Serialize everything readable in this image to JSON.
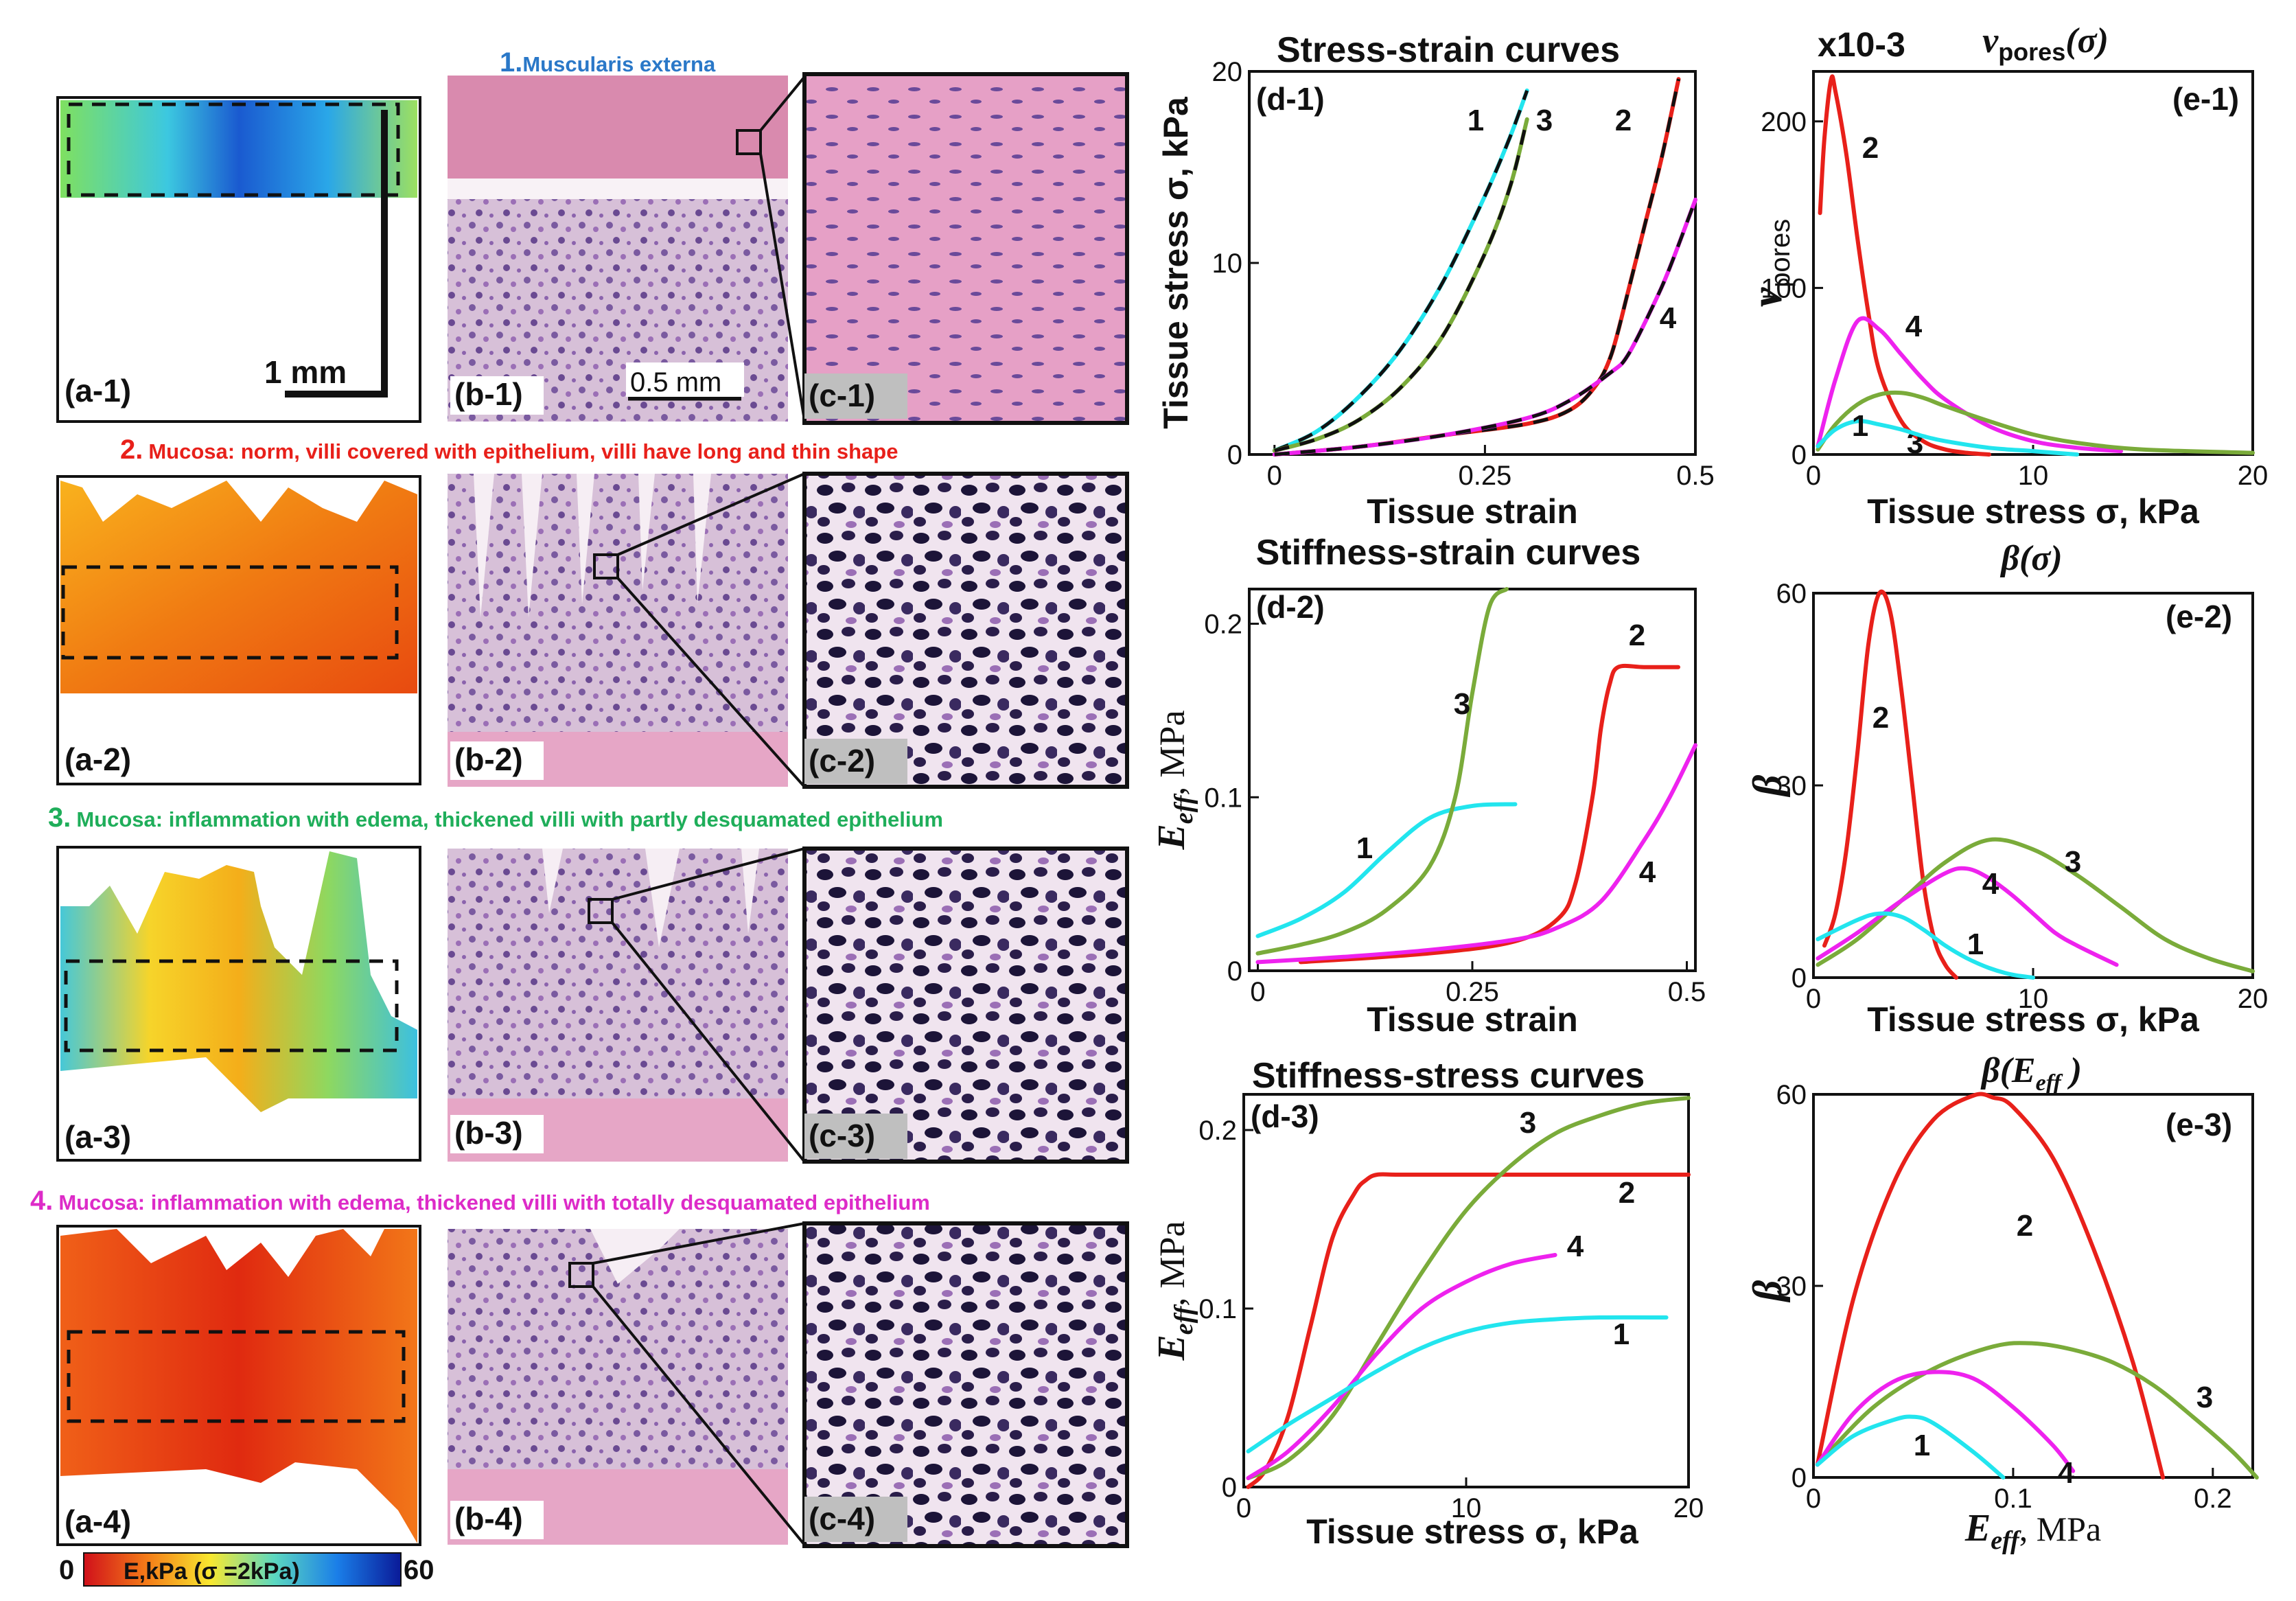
{
  "figure": {
    "panel_labels": {
      "a1": "(a-1)",
      "b1": "(b-1)",
      "c1": "(c-1)",
      "a2": "(a-2)",
      "b2": "(b-2)",
      "c2": "(c-2)",
      "a3": "(a-3)",
      "b3": "(b-3)",
      "c3": "(c-3)",
      "a4": "(a-4)",
      "b4": "(b-4)",
      "c4": "(c-4)"
    },
    "captions": {
      "r1_num": "1.",
      "r1_text": "Muscularis externa",
      "r2_num": "2.",
      "r2_text": "Mucosa: norm, villi covered with epithelium, villi have long and thin shape",
      "r3_num": "3.",
      "r3_text": "Mucosa: inflammation with edema, thickened villi with partly desquamated epithelium",
      "r4_num": "4.",
      "r4_text": "Mucosa: inflammation with edema, thickened villi with totally desquamated epithelium"
    },
    "scalebar_a": "1 mm",
    "scalebar_b": "0.5 mm",
    "colorbar": {
      "min": "0",
      "label": "E,kPa (σ =2kPa)",
      "max": "60"
    },
    "colors": {
      "1": "#22e5ee",
      "2": "#e8201a",
      "3": "#7aab3a",
      "4": "#ee22ee",
      "cap1": "#2a78c8",
      "cap2": "#e8201a",
      "cap3": "#1fae5a",
      "cap4": "#dd2bc8"
    }
  },
  "chart_data": [
    {
      "id": "d-1",
      "type": "line",
      "label": "(d-1)",
      "title": "Stress-strain curves",
      "xlabel": "Tissue strain",
      "ylabel": "Tissue stress σ, kPa",
      "xlim": [
        -0.03,
        0.5
      ],
      "ylim": [
        0,
        20
      ],
      "xticks": [
        {
          "v": 0,
          "t": "0"
        },
        {
          "v": 0.25,
          "t": "0.25"
        },
        {
          "v": 0.5,
          "t": "0.5"
        }
      ],
      "yticks": [
        {
          "v": 0,
          "t": "0"
        },
        {
          "v": 10,
          "t": "10"
        },
        {
          "v": 20,
          "t": "20"
        }
      ],
      "series": [
        {
          "name": "1",
          "x": [
            0,
            0.05,
            0.1,
            0.15,
            0.2,
            0.25,
            0.28,
            0.3
          ],
          "y": [
            0.2,
            1.2,
            3,
            5.5,
            9,
            13.5,
            16.6,
            19
          ]
        },
        {
          "name": "3",
          "x": [
            0,
            0.05,
            0.1,
            0.15,
            0.2,
            0.25,
            0.28,
            0.3
          ],
          "y": [
            0.2,
            0.8,
            1.8,
            3.5,
            6.2,
            10.5,
            14,
            17.5
          ]
        },
        {
          "name": "2",
          "x": [
            0,
            0.1,
            0.2,
            0.3,
            0.35,
            0.38,
            0.4,
            0.42,
            0.44,
            0.46,
            0.48
          ],
          "y": [
            0,
            0.4,
            1,
            1.6,
            2.3,
            3.5,
            5.2,
            8.5,
            12,
            15.5,
            19.6
          ]
        },
        {
          "name": "4",
          "x": [
            0,
            0.1,
            0.2,
            0.3,
            0.35,
            0.4,
            0.42,
            0.45,
            0.47,
            0.5
          ],
          "y": [
            0,
            0.4,
            1,
            1.9,
            2.8,
            4.3,
            5.2,
            7.8,
            9.8,
            13.3
          ]
        }
      ],
      "fit_style": "black dashed overlay"
    },
    {
      "id": "d-2",
      "type": "line",
      "label": "(d-2)",
      "title": "Stiffness-strain curves",
      "xlabel": "Tissue strain",
      "ylabel": "E",
      "ylabel_sub": "eff",
      "ylabel_unit": ", MPa",
      "xlim": [
        -0.01,
        0.51
      ],
      "ylim": [
        0,
        0.22
      ],
      "xticks": [
        {
          "v": 0,
          "t": "0"
        },
        {
          "v": 0.25,
          "t": "0.25"
        },
        {
          "v": 0.5,
          "t": "0.5"
        }
      ],
      "yticks": [
        {
          "v": 0,
          "t": "0"
        },
        {
          "v": 0.1,
          "t": "0.1"
        },
        {
          "v": 0.2,
          "t": "0.2"
        }
      ],
      "series": [
        {
          "name": "1",
          "x": [
            0,
            0.05,
            0.1,
            0.15,
            0.2,
            0.25,
            0.3
          ],
          "y": [
            0.02,
            0.03,
            0.045,
            0.068,
            0.088,
            0.095,
            0.096
          ]
        },
        {
          "name": "3",
          "x": [
            0,
            0.05,
            0.1,
            0.15,
            0.2,
            0.23,
            0.25,
            0.27,
            0.29
          ],
          "y": [
            0.01,
            0.015,
            0.022,
            0.035,
            0.06,
            0.1,
            0.16,
            0.21,
            0.22
          ]
        },
        {
          "name": "2",
          "x": [
            0.05,
            0.2,
            0.3,
            0.35,
            0.37,
            0.39,
            0.4,
            0.41,
            0.42,
            0.45,
            0.49
          ],
          "y": [
            0.005,
            0.01,
            0.017,
            0.03,
            0.05,
            0.1,
            0.14,
            0.165,
            0.175,
            0.175,
            0.175
          ]
        },
        {
          "name": "4",
          "x": [
            0,
            0.1,
            0.2,
            0.3,
            0.35,
            0.4,
            0.45,
            0.48,
            0.51
          ],
          "y": [
            0.005,
            0.008,
            0.012,
            0.018,
            0.025,
            0.04,
            0.075,
            0.1,
            0.13
          ]
        }
      ]
    },
    {
      "id": "d-3",
      "type": "line",
      "label": "(d-3)",
      "title": "Stiffness-stress curves",
      "xlabel": "Tissue stress σ, kPa",
      "ylabel": "E",
      "ylabel_sub": "eff",
      "ylabel_unit": ", MPa",
      "xlim": [
        0,
        20
      ],
      "ylim": [
        0,
        0.22
      ],
      "xticks": [
        {
          "v": 0,
          "t": "0"
        },
        {
          "v": 10,
          "t": "10"
        },
        {
          "v": 20,
          "t": "20"
        }
      ],
      "yticks": [
        {
          "v": 0,
          "t": "0"
        },
        {
          "v": 0.1,
          "t": "0.1"
        },
        {
          "v": 0.2,
          "t": "0.2"
        }
      ],
      "series": [
        {
          "name": "2",
          "x": [
            0.2,
            1,
            2,
            3,
            4,
            5,
            5.5,
            6,
            7,
            10,
            15,
            20
          ],
          "y": [
            0,
            0.01,
            0.04,
            0.09,
            0.14,
            0.165,
            0.172,
            0.175,
            0.175,
            0.175,
            0.175,
            0.175
          ]
        },
        {
          "name": "3",
          "x": [
            0.2,
            2,
            4,
            6,
            8,
            10,
            12,
            14,
            16,
            18,
            20
          ],
          "y": [
            0.005,
            0.015,
            0.04,
            0.08,
            0.12,
            0.155,
            0.18,
            0.198,
            0.208,
            0.215,
            0.218
          ]
        },
        {
          "name": "4",
          "x": [
            0.2,
            2,
            4,
            6,
            8,
            10,
            12,
            14
          ],
          "y": [
            0.005,
            0.02,
            0.045,
            0.075,
            0.1,
            0.115,
            0.125,
            0.13
          ]
        },
        {
          "name": "1",
          "x": [
            0.2,
            2,
            4,
            6,
            8,
            10,
            12,
            14,
            16,
            19
          ],
          "y": [
            0.02,
            0.035,
            0.05,
            0.065,
            0.078,
            0.087,
            0.092,
            0.094,
            0.095,
            0.095
          ]
        }
      ]
    },
    {
      "id": "e-1",
      "type": "line",
      "label": "(e-1)",
      "title": "v",
      "title_sub": "pores",
      "title_arg": "(σ)",
      "multiplier": "x10-3",
      "xlabel": "Tissue stress σ, kPa",
      "ylabel": "v",
      "ylabel_sub": "pores",
      "xlim": [
        0,
        20
      ],
      "ylim": [
        0,
        230
      ],
      "xticks": [
        {
          "v": 0,
          "t": "0"
        },
        {
          "v": 10,
          "t": "10"
        },
        {
          "v": 20,
          "t": "20"
        }
      ],
      "yticks": [
        {
          "v": 0,
          "t": "0"
        },
        {
          "v": 100,
          "t": "100"
        },
        {
          "v": 200,
          "t": "200"
        }
      ],
      "series": [
        {
          "name": "2",
          "x": [
            0.3,
            0.5,
            0.8,
            1,
            1.5,
            2,
            2.5,
            3,
            4,
            5,
            6,
            7,
            8
          ],
          "y": [
            145,
            190,
            225,
            218,
            180,
            130,
            85,
            50,
            20,
            8,
            3,
            1,
            0
          ]
        },
        {
          "name": "4",
          "x": [
            0.2,
            1,
            2,
            3,
            4,
            5,
            6,
            8,
            10,
            12,
            14
          ],
          "y": [
            5,
            45,
            80,
            75,
            60,
            45,
            33,
            17,
            8,
            4,
            2
          ]
        },
        {
          "name": "3",
          "x": [
            0.2,
            1,
            2,
            3,
            4,
            5,
            6,
            8,
            10,
            12,
            15,
            20
          ],
          "y": [
            3,
            18,
            30,
            36,
            37,
            34,
            29,
            20,
            12,
            7,
            3,
            1
          ]
        },
        {
          "name": "1",
          "x": [
            0.2,
            1,
            2,
            3,
            4,
            5,
            6,
            8,
            10,
            12
          ],
          "y": [
            5,
            15,
            20,
            18,
            15,
            11,
            8,
            4,
            2,
            0
          ]
        }
      ]
    },
    {
      "id": "e-2",
      "type": "line",
      "label": "(e-2)",
      "title": "β(σ)",
      "xlabel": "Tissue stress σ, kPa",
      "ylabel": "β",
      "xlim": [
        0,
        20
      ],
      "ylim": [
        0,
        60
      ],
      "xticks": [
        {
          "v": 0,
          "t": "0"
        },
        {
          "v": 10,
          "t": "10"
        },
        {
          "v": 20,
          "t": "20"
        }
      ],
      "yticks": [
        {
          "v": 0,
          "t": "0"
        },
        {
          "v": 30,
          "t": "30"
        },
        {
          "v": 60,
          "t": "60"
        }
      ],
      "series": [
        {
          "name": "2",
          "x": [
            0.5,
            1,
            1.5,
            2,
            2.5,
            3,
            3.5,
            4,
            4.5,
            5,
            5.5,
            6,
            6.5
          ],
          "y": [
            5,
            10,
            20,
            35,
            52,
            60,
            57,
            45,
            30,
            15,
            6,
            2,
            0
          ]
        },
        {
          "name": "3",
          "x": [
            0.2,
            2,
            4,
            6,
            8,
            10,
            12,
            14,
            16,
            18,
            20
          ],
          "y": [
            2,
            6,
            12,
            18,
            21.5,
            20,
            16,
            11,
            6,
            3,
            1
          ]
        },
        {
          "name": "4",
          "x": [
            0.2,
            2,
            4,
            6,
            7,
            8,
            9,
            10,
            11,
            12,
            13.8
          ],
          "y": [
            3,
            7,
            12,
            16.3,
            17,
            15.5,
            13,
            10,
            7,
            5,
            2
          ]
        },
        {
          "name": "1",
          "x": [
            0.2,
            2,
            3,
            4,
            5,
            6,
            7,
            8,
            9,
            10
          ],
          "y": [
            6,
            9,
            10,
            9.5,
            7.5,
            5,
            3,
            1.5,
            0.5,
            0
          ]
        }
      ]
    },
    {
      "id": "e-3",
      "type": "line",
      "label": "(e-3)",
      "title": "β(E",
      "title_sub": "eff",
      "title_end": " )",
      "xlabel": "E",
      "xlabel_sub": "eff",
      "xlabel_unit": ", MPa",
      "ylabel": "β",
      "xlim": [
        0,
        0.22
      ],
      "ylim": [
        0,
        60
      ],
      "xticks": [
        {
          "v": 0,
          "t": "0"
        },
        {
          "v": 0.1,
          "t": "0.1"
        },
        {
          "v": 0.2,
          "t": "0.2"
        }
      ],
      "yticks": [
        {
          "v": 0,
          "t": "0"
        },
        {
          "v": 30,
          "t": "30"
        },
        {
          "v": 60,
          "t": "60"
        }
      ],
      "series": [
        {
          "name": "2",
          "x": [
            0.002,
            0.02,
            0.04,
            0.06,
            0.08,
            0.09,
            0.1,
            0.12,
            0.14,
            0.16,
            0.175
          ],
          "y": [
            2,
            28,
            46,
            56,
            59.8,
            59.5,
            58,
            50,
            36,
            18,
            0
          ]
        },
        {
          "name": "3",
          "x": [
            0.002,
            0.03,
            0.06,
            0.09,
            0.11,
            0.13,
            0.15,
            0.17,
            0.19,
            0.21,
            0.222
          ],
          "y": [
            2,
            11,
            17,
            20.5,
            21,
            20,
            18,
            14.5,
            9.5,
            4,
            0
          ]
        },
        {
          "name": "4",
          "x": [
            0.002,
            0.02,
            0.04,
            0.06,
            0.08,
            0.1,
            0.12,
            0.13
          ],
          "y": [
            2,
            10,
            15,
            16.5,
            15.5,
            11,
            5,
            1
          ]
        },
        {
          "name": "1",
          "x": [
            0.002,
            0.02,
            0.04,
            0.05,
            0.06,
            0.08,
            0.095
          ],
          "y": [
            2,
            6.5,
            9,
            9.5,
            8.5,
            4,
            0
          ]
        }
      ]
    }
  ]
}
